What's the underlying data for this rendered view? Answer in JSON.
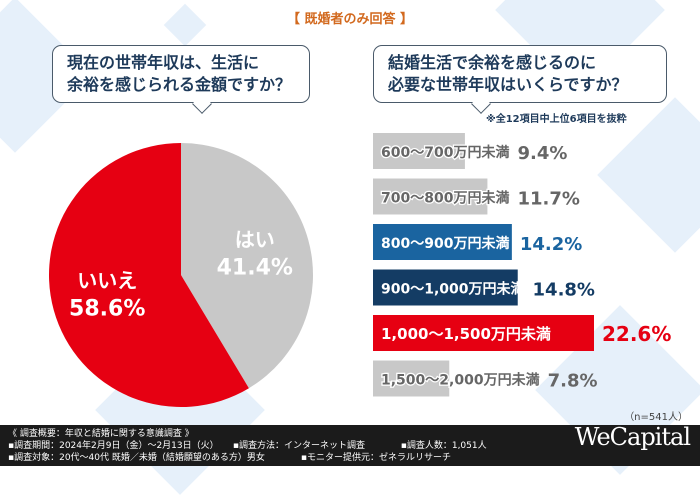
{
  "header": {
    "title": "【 既婚者のみ回答 】"
  },
  "left_question": {
    "line1": "現在の世帯年収は、生活に",
    "line2": "余裕を感じられる金額ですか？"
  },
  "right_question": {
    "line1": "結婚生活で余裕を感じるのに",
    "line2": "必要な世帯年収はいくらですか？",
    "note": "※全12項目中上位6項目を抜粋"
  },
  "chart_data": [
    {
      "type": "pie",
      "slices": [
        {
          "label": "はい",
          "value": 41.4,
          "display": "41.4%",
          "color": "#c8c8c8",
          "text_color": "#ffffff"
        },
        {
          "label": "いいえ",
          "value": 58.6,
          "display": "58.6%",
          "color": "#e60012",
          "text_color": "#ffffff"
        }
      ],
      "start": "top",
      "direction": "clockwise"
    },
    {
      "type": "bar",
      "orientation": "horizontal",
      "categories": [
        "600〜700万円未満",
        "700〜800万円未満",
        "800〜900万円未満",
        "900〜1,000万円未満",
        "1,000〜1,500万円未満",
        "1,500〜2,000万円未満"
      ],
      "values": [
        9.4,
        11.7,
        14.2,
        14.8,
        22.6,
        7.8
      ],
      "labels": [
        "9.4%",
        "11.7%",
        "14.2%",
        "14.8%",
        "22.6%",
        "7.8%"
      ],
      "colors": [
        "#c8c8c8",
        "#c8c8c8",
        "#1a64a0",
        "#143c64",
        "#e60012",
        "#c8c8c8"
      ],
      "value_colors": [
        "#666666",
        "#666666",
        "#1a64a0",
        "#143c64",
        "#e60012",
        "#666666"
      ],
      "xlim": [
        0,
        25
      ]
    }
  ],
  "sample": "（n=541人）",
  "footer": {
    "heading": "《 調査概要：年収と結婚に関する意識調査 》",
    "period": "▪調査期間：2024年2月9日（金）〜2月13日（火）",
    "method": "▪調査方法：インターネット調査",
    "count": "▪調査人数：1,051人",
    "target": "▪調査対象：20代〜40代 既婚／未婚（結婚願望のある方）男女",
    "provider": "▪モニター提供元：ゼネラルリサーチ",
    "logo": "WeCapital"
  }
}
